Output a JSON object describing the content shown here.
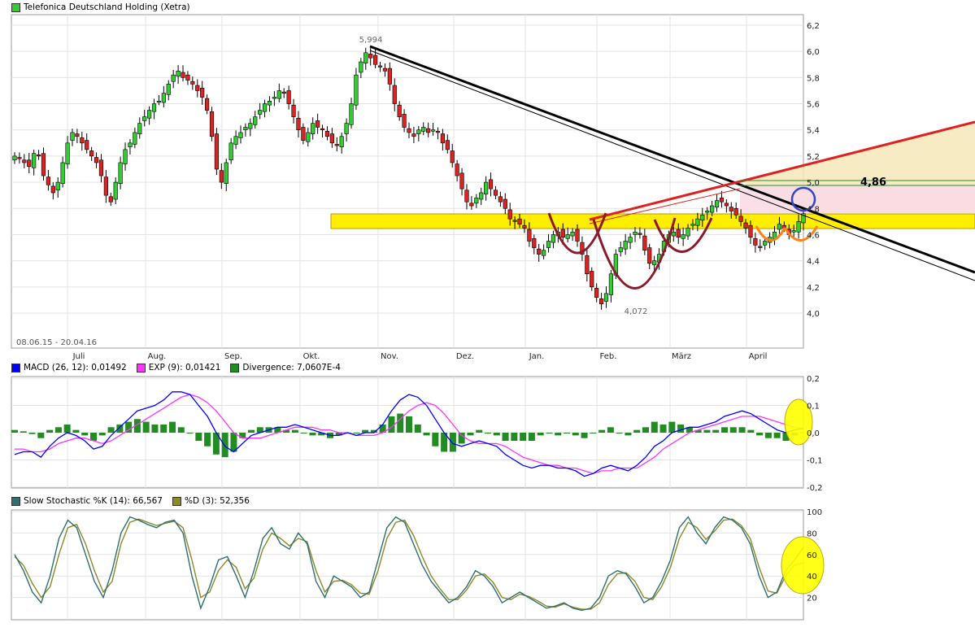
{
  "header": {
    "title": "Telefonica Deutschland Holding (Xetra)",
    "title_color": "#33cc33"
  },
  "price_panel": {
    "date_range": "08.06.15 - 20.04.16",
    "high_label": "5,994",
    "low_label": "4,072",
    "target_label": "4,86",
    "y_ticks": [
      "4,0",
      "4,2",
      "4,4",
      "4,6",
      "4,8",
      "5,0",
      "5,2",
      "5,4",
      "5,6",
      "5,8",
      "6,0",
      "6,2"
    ],
    "x_ticks": [
      "Juli",
      "Aug.",
      "Sep.",
      "Okt.",
      "Nov.",
      "Dez.",
      "Jan.",
      "Feb.",
      "März",
      "April"
    ]
  },
  "macd_panel": {
    "legend": [
      {
        "label": "MACD (26, 12): 0,01492",
        "color": "#0000ff"
      },
      {
        "label": "EXP (9): 0,01421",
        "color": "#ff33ff"
      },
      {
        "label": "Divergence: 7,0607E-4",
        "color": "#228b22"
      }
    ],
    "y_ticks": [
      "0,2",
      "0,1",
      "0,0",
      "-0,1",
      "-0,2"
    ]
  },
  "stoch_panel": {
    "legend": [
      {
        "label": "Slow Stochastic %K (14): 66,567",
        "color": "#2f6f6f"
      },
      {
        "label": "%D (3): 52,356",
        "color": "#8a8a2a"
      }
    ],
    "y_ticks": [
      "100",
      "80",
      "60",
      "40",
      "20"
    ]
  },
  "chart_data": [
    {
      "type": "candlestick",
      "title": "Telefonica Deutschland Holding (Xetra)",
      "period": "08.06.15 - 20.04.16",
      "ylim": [
        3.9,
        6.25
      ],
      "ytick_values": [
        4.0,
        4.2,
        4.4,
        4.6,
        4.8,
        5.0,
        5.2,
        5.4,
        5.6,
        5.8,
        6.0,
        6.2
      ],
      "x_months": [
        "Juli",
        "Aug.",
        "Sep.",
        "Okt.",
        "Nov.",
        "Dez.",
        "Jan.",
        "Feb.",
        "März",
        "April"
      ],
      "closes": [
        5.2,
        5.18,
        5.15,
        5.12,
        5.22,
        5.2,
        5.05,
        4.98,
        4.92,
        5.0,
        5.15,
        5.3,
        5.38,
        5.35,
        5.3,
        5.25,
        5.2,
        5.15,
        5.05,
        4.9,
        4.85,
        5.0,
        5.15,
        5.25,
        5.3,
        5.38,
        5.45,
        5.5,
        5.55,
        5.6,
        5.62,
        5.68,
        5.75,
        5.82,
        5.85,
        5.8,
        5.78,
        5.75,
        5.7,
        5.65,
        5.55,
        5.35,
        5.1,
        5.0,
        5.15,
        5.3,
        5.35,
        5.38,
        5.42,
        5.45,
        5.5,
        5.55,
        5.6,
        5.62,
        5.65,
        5.7,
        5.68,
        5.6,
        5.5,
        5.4,
        5.32,
        5.38,
        5.45,
        5.42,
        5.4,
        5.35,
        5.3,
        5.28,
        5.35,
        5.45,
        5.6,
        5.82,
        5.92,
        5.99,
        5.95,
        5.9,
        5.88,
        5.85,
        5.75,
        5.6,
        5.5,
        5.42,
        5.38,
        5.35,
        5.4,
        5.42,
        5.38,
        5.4,
        5.38,
        5.3,
        5.25,
        5.15,
        5.05,
        4.95,
        4.85,
        4.82,
        4.88,
        4.92,
        5.0,
        4.95,
        4.9,
        4.85,
        4.8,
        4.72,
        4.7,
        4.68,
        4.65,
        4.55,
        4.5,
        4.45,
        4.48,
        4.55,
        4.6,
        4.62,
        4.58,
        4.6,
        4.62,
        4.55,
        4.45,
        4.3,
        4.2,
        4.12,
        4.07,
        4.15,
        4.3,
        4.45,
        4.5,
        4.55,
        4.58,
        4.62,
        4.6,
        4.48,
        4.38,
        4.4,
        4.45,
        4.55,
        4.6,
        4.62,
        4.58,
        4.6,
        4.65,
        4.68,
        4.72,
        4.75,
        4.78,
        4.82,
        4.86,
        4.85,
        4.82,
        4.78,
        4.75,
        4.7,
        4.65,
        4.58,
        4.52,
        4.5,
        4.55,
        4.58,
        4.62,
        4.68,
        4.65,
        4.6,
        4.63,
        4.7,
        4.76
      ]
    },
    {
      "type": "line",
      "title": "MACD",
      "ylim": [
        -0.2,
        0.2
      ],
      "series": [
        {
          "name": "MACD (26, 12)",
          "last": 0.01492,
          "values": [
            -0.08,
            -0.07,
            -0.07,
            -0.09,
            -0.05,
            -0.02,
            0.0,
            -0.01,
            -0.03,
            -0.06,
            -0.05,
            -0.01,
            0.02,
            0.05,
            0.08,
            0.09,
            0.1,
            0.12,
            0.15,
            0.15,
            0.14,
            0.1,
            0.06,
            0.0,
            -0.05,
            -0.07,
            -0.04,
            -0.01,
            0.0,
            0.01,
            0.02,
            0.02,
            0.03,
            0.02,
            0.01,
            0.0,
            -0.01,
            -0.01,
            0.0,
            -0.01,
            0.0,
            0.0,
            0.03,
            0.08,
            0.12,
            0.14,
            0.13,
            0.1,
            0.05,
            0.0,
            -0.04,
            -0.05,
            -0.04,
            -0.03,
            -0.04,
            -0.05,
            -0.08,
            -0.1,
            -0.12,
            -0.13,
            -0.12,
            -0.12,
            -0.13,
            -0.13,
            -0.14,
            -0.16,
            -0.15,
            -0.13,
            -0.12,
            -0.13,
            -0.14,
            -0.12,
            -0.09,
            -0.05,
            -0.03,
            0.0,
            0.01,
            0.02,
            0.02,
            0.03,
            0.04,
            0.06,
            0.07,
            0.08,
            0.07,
            0.05,
            0.03,
            0.01,
            0.0,
            0.01,
            0.015
          ]
        },
        {
          "name": "EXP (9)",
          "last": 0.01421,
          "values": [
            -0.06,
            -0.06,
            -0.07,
            -0.07,
            -0.06,
            -0.04,
            -0.03,
            -0.02,
            -0.02,
            -0.03,
            -0.04,
            -0.03,
            -0.01,
            0.01,
            0.03,
            0.05,
            0.07,
            0.09,
            0.11,
            0.13,
            0.14,
            0.13,
            0.11,
            0.08,
            0.04,
            0.0,
            -0.02,
            -0.02,
            -0.02,
            -0.01,
            0.0,
            0.01,
            0.02,
            0.02,
            0.02,
            0.01,
            0.01,
            0.0,
            0.0,
            -0.01,
            -0.01,
            -0.01,
            0.0,
            0.02,
            0.05,
            0.08,
            0.1,
            0.11,
            0.1,
            0.07,
            0.03,
            -0.01,
            -0.03,
            -0.04,
            -0.04,
            -0.04,
            -0.05,
            -0.07,
            -0.09,
            -0.1,
            -0.11,
            -0.12,
            -0.12,
            -0.13,
            -0.13,
            -0.14,
            -0.15,
            -0.14,
            -0.14,
            -0.13,
            -0.13,
            -0.13,
            -0.11,
            -0.09,
            -0.06,
            -0.04,
            -0.02,
            0.0,
            0.01,
            0.02,
            0.03,
            0.04,
            0.05,
            0.06,
            0.06,
            0.06,
            0.05,
            0.04,
            0.03,
            0.02,
            0.014
          ]
        },
        {
          "name": "Divergence",
          "last": 0.00070607,
          "values": [
            0.01,
            0.005,
            -0.005,
            -0.02,
            0.01,
            0.02,
            0.03,
            0.01,
            -0.01,
            -0.03,
            -0.01,
            0.02,
            0.03,
            0.04,
            0.05,
            0.04,
            0.03,
            0.03,
            0.04,
            0.02,
            0.0,
            -0.03,
            -0.05,
            -0.08,
            -0.09,
            -0.07,
            -0.02,
            0.01,
            0.02,
            0.02,
            0.02,
            0.01,
            0.01,
            0.0,
            -0.01,
            -0.01,
            -0.02,
            -0.01,
            0.0,
            0.0,
            0.01,
            0.01,
            0.03,
            0.06,
            0.07,
            0.06,
            0.03,
            -0.01,
            -0.05,
            -0.07,
            -0.07,
            -0.04,
            -0.01,
            0.01,
            0.0,
            -0.01,
            -0.03,
            -0.03,
            -0.03,
            -0.03,
            -0.01,
            0.0,
            -0.01,
            0.0,
            -0.01,
            -0.02,
            0.0,
            0.01,
            0.02,
            0.0,
            -0.01,
            0.01,
            0.02,
            0.04,
            0.03,
            0.04,
            0.03,
            0.02,
            0.01,
            0.01,
            0.01,
            0.02,
            0.02,
            0.02,
            0.01,
            -0.01,
            -0.02,
            -0.02,
            -0.03,
            -0.01,
            0.001
          ]
        }
      ]
    },
    {
      "type": "line",
      "title": "Slow Stochastic",
      "ylim": [
        0,
        100
      ],
      "series": [
        {
          "name": "Slow Stochastic %K (14)",
          "last": 66.567,
          "values": [
            60,
            45,
            25,
            15,
            40,
            75,
            92,
            85,
            60,
            35,
            20,
            45,
            80,
            95,
            92,
            88,
            85,
            90,
            92,
            80,
            40,
            10,
            30,
            55,
            58,
            40,
            20,
            45,
            75,
            85,
            70,
            65,
            80,
            70,
            35,
            20,
            40,
            35,
            30,
            20,
            25,
            55,
            85,
            95,
            90,
            70,
            50,
            35,
            25,
            15,
            20,
            30,
            45,
            40,
            30,
            15,
            20,
            25,
            20,
            15,
            10,
            12,
            15,
            10,
            8,
            10,
            20,
            40,
            45,
            42,
            30,
            15,
            20,
            35,
            55,
            85,
            95,
            80,
            70,
            85,
            95,
            92,
            85,
            70,
            40,
            20,
            25,
            45,
            55,
            66.5
          ]
        },
        {
          "name": "%D (3)",
          "last": 52.356,
          "values": [
            58,
            50,
            33,
            20,
            30,
            60,
            85,
            88,
            70,
            45,
            25,
            35,
            70,
            90,
            93,
            90,
            87,
            89,
            91,
            85,
            55,
            20,
            25,
            45,
            55,
            48,
            28,
            38,
            65,
            80,
            75,
            68,
            75,
            72,
            45,
            25,
            35,
            36,
            32,
            24,
            23,
            45,
            75,
            90,
            92,
            78,
            58,
            40,
            28,
            18,
            18,
            27,
            40,
            42,
            34,
            20,
            18,
            23,
            21,
            17,
            12,
            11,
            14,
            11,
            9,
            9,
            15,
            32,
            42,
            43,
            35,
            20,
            18,
            30,
            48,
            75,
            90,
            85,
            74,
            82,
            92,
            93,
            87,
            75,
            48,
            26,
            24,
            40,
            50,
            52.4
          ]
        }
      ]
    }
  ]
}
